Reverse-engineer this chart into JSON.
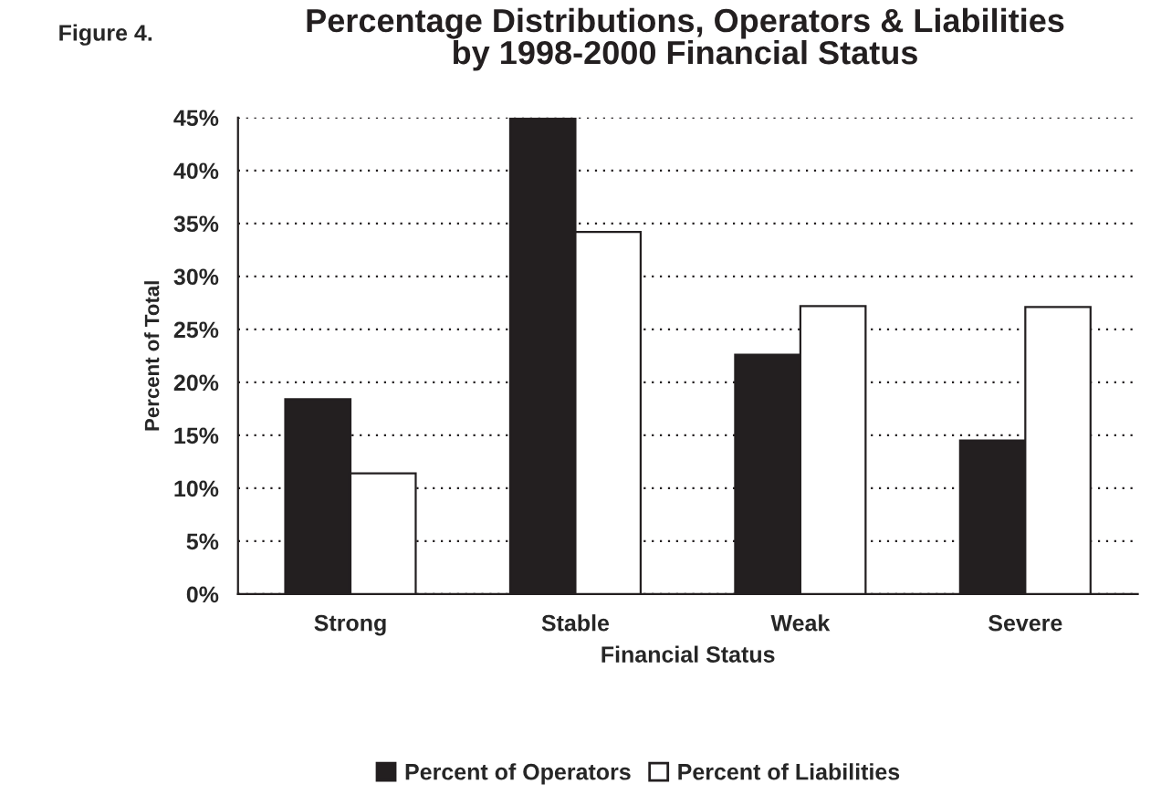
{
  "chart_data": {
    "type": "bar",
    "title": "Percentage Distributions, Operators & Liabilities\nby 1998-2000 Financial Status",
    "annotations": [
      "Figure 4."
    ],
    "xlabel": "Financial Status",
    "ylabel": "Percent of Total",
    "categories": [
      "Strong",
      "Stable",
      "Weak",
      "Severe"
    ],
    "series": [
      {
        "name": "Percent of Operators",
        "color": "#231f20",
        "values": [
          18.4,
          44.9,
          22.6,
          14.5
        ]
      },
      {
        "name": "Percent of Liabilities",
        "color": "#ffffff",
        "values": [
          11.4,
          34.2,
          27.2,
          27.1
        ]
      }
    ],
    "ylim": [
      0,
      45
    ],
    "yticks": [
      {
        "value": 0,
        "label": "0%"
      },
      {
        "value": 5,
        "label": "5%"
      },
      {
        "value": 10,
        "label": "10%"
      },
      {
        "value": 15,
        "label": "15%"
      },
      {
        "value": 20,
        "label": "20%"
      },
      {
        "value": 25,
        "label": "25%"
      },
      {
        "value": 30,
        "label": "30%"
      },
      {
        "value": 35,
        "label": "35%"
      },
      {
        "value": 40,
        "label": "40%"
      },
      {
        "value": 45,
        "label": "45%"
      }
    ],
    "grid": "y",
    "legend": "bottom"
  }
}
